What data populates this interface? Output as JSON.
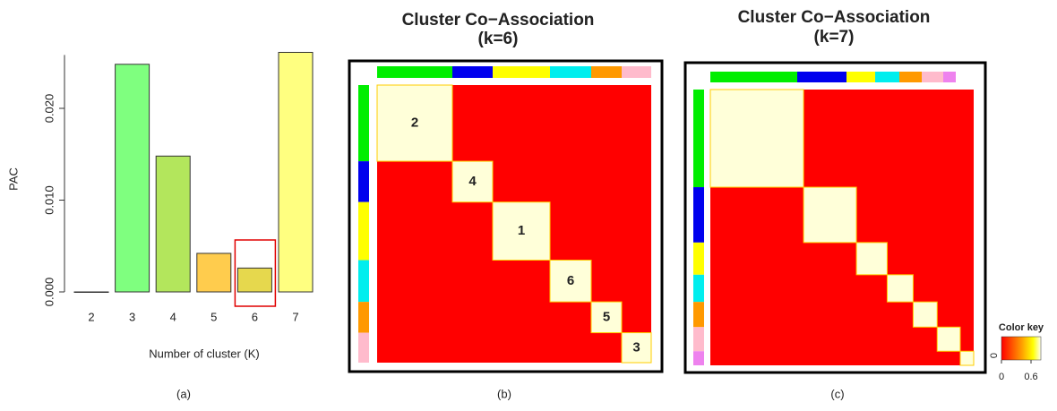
{
  "chart_data": [
    {
      "type": "bar",
      "y_label": "PAC",
      "x_label": "Number of cluster (K)",
      "caption": "(a)",
      "categories": [
        "2",
        "3",
        "4",
        "5",
        "6",
        "7"
      ],
      "values": [
        0,
        0.0248,
        0.0148,
        0.0042,
        0.0026,
        0.0261
      ],
      "colors": [
        "#ffffff",
        "#7fff7f",
        "#b3e65c",
        "#ffcc4d",
        "#e6d84d",
        "#ffff80"
      ],
      "ylim": [
        0,
        0.0265
      ],
      "yticks": [
        {
          "value": 0,
          "label": "0.000"
        },
        {
          "value": 0.01,
          "label": "0.010"
        },
        {
          "value": 0.02,
          "label": "0.020"
        }
      ],
      "highlight": "6",
      "highlight_color": "#e00000"
    },
    {
      "type": "heatmap",
      "title": "Cluster Co−Association",
      "subtitle": "(k=6)",
      "caption": "(b)",
      "colors": [
        "#00ee00",
        "#0000ee",
        "#ffff00",
        "#00eeee",
        "#ff9900",
        "#ffbbcc"
      ],
      "sizes": [
        84,
        45,
        64,
        46,
        34,
        33
      ],
      "block_labels": [
        "2",
        "4",
        "1",
        "6",
        "5",
        "3"
      ]
    },
    {
      "type": "heatmap",
      "title": "Cluster Co−Association",
      "subtitle": "(k=7)",
      "caption": "(c)",
      "colors": [
        "#00ee00",
        "#0000ee",
        "#ffff00",
        "#00eeee",
        "#ff9900",
        "#ffbbcc",
        "#ee82ee"
      ],
      "sizes": [
        97,
        55,
        32,
        27,
        25,
        24,
        14
      ],
      "color_key": {
        "title": "Color key",
        "xticks": [
          0,
          0.6
        ],
        "xlim": [
          0,
          0.8
        ],
        "count_tick": "0"
      }
    }
  ]
}
